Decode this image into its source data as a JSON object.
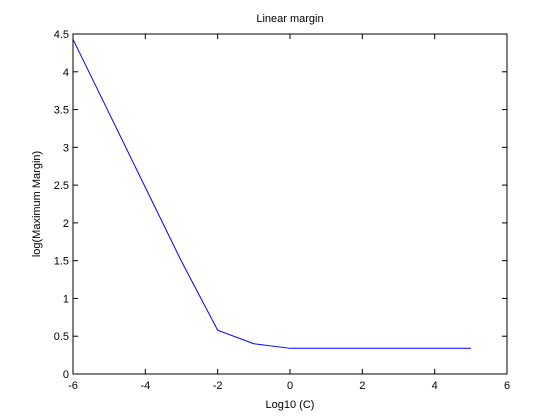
{
  "chart_data": {
    "type": "line",
    "title": "Linear margin",
    "xlabel": "Log10 (C)",
    "ylabel": "log(Maximum Margin)",
    "xlim": [
      -6,
      6
    ],
    "ylim": [
      0,
      4.5
    ],
    "xticks": [
      "-6",
      "-4",
      "-2",
      "0",
      "2",
      "4",
      "6"
    ],
    "yticks": [
      "0",
      "0.5",
      "1",
      "1.5",
      "2",
      "2.5",
      "3",
      "3.5",
      "4",
      "4.5"
    ],
    "grid": false,
    "series": [
      {
        "x": [
          -6,
          -5,
          -4,
          -3,
          -2,
          -1,
          0,
          1,
          2,
          3,
          4,
          5
        ],
        "y": [
          4.43,
          3.45,
          2.47,
          1.49,
          0.58,
          0.4,
          0.34,
          0.34,
          0.34,
          0.34,
          0.34,
          0.34
        ],
        "color": "#0000ff"
      }
    ]
  }
}
